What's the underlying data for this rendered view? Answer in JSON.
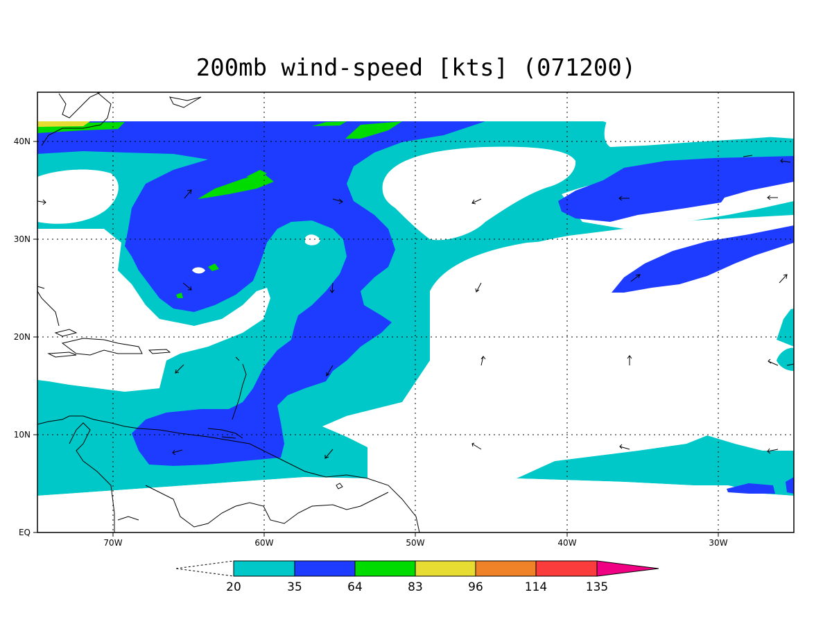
{
  "title": "200mb wind-speed [kts] (071200)",
  "map": {
    "lon_range": [
      "75W",
      "25W"
    ],
    "lat_range": [
      "EQ",
      "45N"
    ],
    "grid": "dotted",
    "x_ticks": [
      "70W",
      "60W",
      "50W",
      "40W",
      "30W"
    ],
    "y_ticks": [
      "EQ",
      "10N",
      "20N",
      "30N",
      "40N"
    ]
  },
  "legend": {
    "levels": [
      "20",
      "35",
      "64",
      "83",
      "96",
      "114",
      "135"
    ],
    "colors": [
      "#00c8c8",
      "#1e3cff",
      "#00dc00",
      "#e6dc32",
      "#f08228",
      "#fa3c3c",
      "#f00082"
    ],
    "under_color": "#ffffff"
  },
  "colors": {
    "band_20_35": "#00c8c8",
    "band_35_64": "#1e3cff",
    "band_64_83": "#00dc00",
    "band_83_96": "#e6dc32"
  }
}
